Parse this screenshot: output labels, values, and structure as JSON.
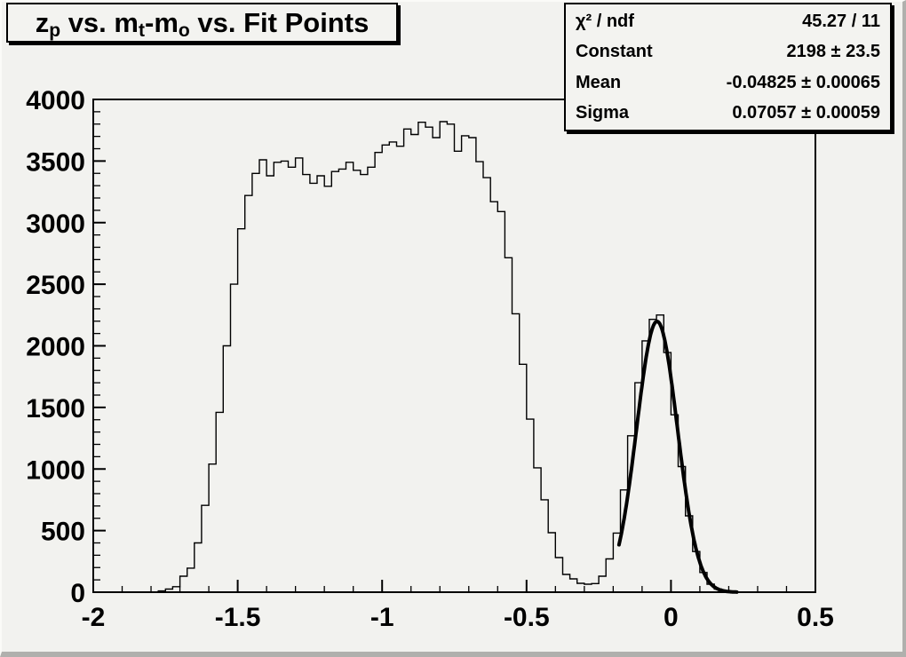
{
  "title": {
    "plain": "z_p vs. m_t-m_o vs. Fit Points",
    "segments": [
      {
        "text": "z"
      },
      {
        "text": "p",
        "sub": true
      },
      {
        "text": " vs. m"
      },
      {
        "text": "t",
        "sub": true
      },
      {
        "text": "-m"
      },
      {
        "text": "o",
        "sub": true
      },
      {
        "text": " vs. Fit Points"
      }
    ]
  },
  "stats_box": {
    "rows": [
      {
        "label": "χ² / ndf",
        "value": "45.27 / 11"
      },
      {
        "label": "Constant",
        "value": "2198 ± 23.5"
      },
      {
        "label": "Mean",
        "value": "-0.04825 ± 0.00065"
      },
      {
        "label": "Sigma",
        "value": "0.07057 ± 0.00059"
      }
    ]
  },
  "colors": {
    "canvas_bg": "#f2f2ef",
    "line": "#000000",
    "box_fill": "#f3f3f0",
    "box_border": "#000000"
  },
  "chart_data": {
    "type": "histogram-with-fit",
    "title": "z_p vs. m_t-m_o vs. Fit Points",
    "xlabel": "",
    "ylabel": "",
    "xlim": [
      -2.0,
      0.5
    ],
    "ylim": [
      0,
      4000
    ],
    "grid": false,
    "legend_position": "none",
    "x_tick_values": [
      -2,
      -1.5,
      -1,
      -0.5,
      0,
      0.5
    ],
    "x_tick_labels": [
      "-2",
      "-1.5",
      "-1",
      "-0.5",
      "0",
      "0.5"
    ],
    "x_minor_step": 0.1,
    "y_tick_values": [
      0,
      500,
      1000,
      1500,
      2000,
      2500,
      3000,
      3500,
      4000
    ],
    "y_tick_labels": [
      "0",
      "500",
      "1000",
      "1500",
      "2000",
      "2500",
      "3000",
      "3500",
      "4000"
    ],
    "y_minor_step": 100,
    "histogram": {
      "x_start": -2.0,
      "bin_width": 0.025,
      "bins": [
        0,
        0,
        0,
        0,
        0,
        0,
        0,
        0,
        0,
        10,
        25,
        45,
        130,
        195,
        400,
        705,
        1040,
        1460,
        2000,
        2500,
        2950,
        3220,
        3400,
        3510,
        3380,
        3490,
        3500,
        3450,
        3525,
        3390,
        3320,
        3380,
        3295,
        3415,
        3435,
        3490,
        3425,
        3390,
        3450,
        3570,
        3630,
        3655,
        3620,
        3760,
        3715,
        3815,
        3775,
        3690,
        3820,
        3800,
        3580,
        3705,
        3690,
        3495,
        3365,
        3170,
        3090,
        2715,
        2260,
        1850,
        1405,
        1010,
        750,
        483,
        281,
        144,
        108,
        72,
        65,
        70,
        130,
        270,
        480,
        830,
        1270,
        1700,
        2040,
        2215,
        2250,
        1945,
        1440,
        1020,
        620,
        330,
        160,
        65,
        25,
        10,
        4,
        2,
        0,
        0,
        0,
        0,
        0,
        0,
        0,
        0,
        0,
        0
      ]
    },
    "fit": {
      "shape": "gaussian",
      "chi2": 45.27,
      "ndf": 11,
      "constant": 2198,
      "constant_err": 23.5,
      "mean": -0.04825,
      "mean_err": 0.00065,
      "sigma": 0.07057,
      "sigma_err": 0.00059,
      "draw_range": [
        -0.18,
        0.228
      ]
    }
  }
}
